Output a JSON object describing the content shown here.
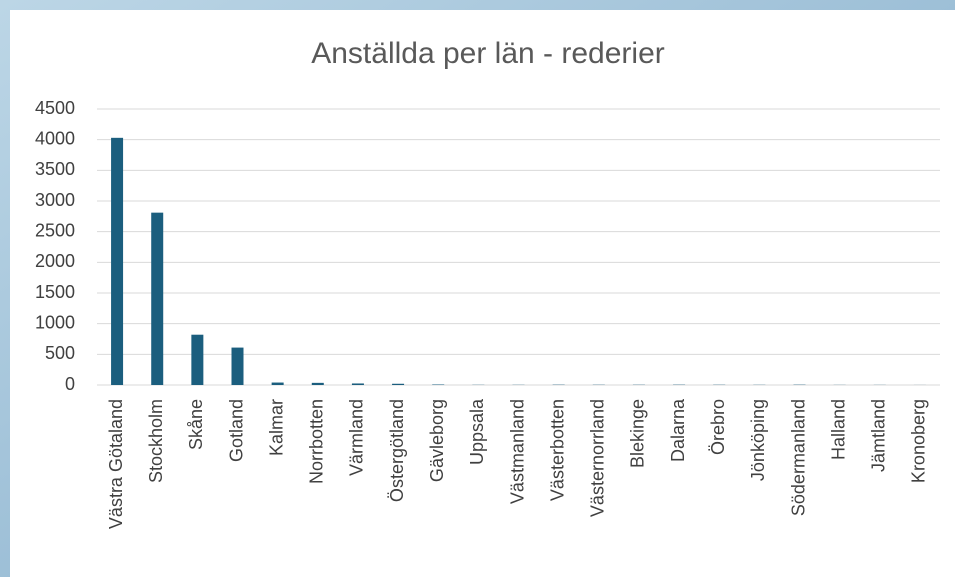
{
  "chart_data": {
    "type": "bar",
    "title": "Anställda per län - rederier",
    "categories": [
      "Västra Götaland",
      "Stockholm",
      "Skåne",
      "Gotland",
      "Kalmar",
      "Norrbotten",
      "Värmland",
      "Östergötland",
      "Gävleborg",
      "Uppsala",
      "Västmanland",
      "Västerbotten",
      "Västernorrland",
      "Blekinge",
      "Dalarna",
      "Örebro",
      "Jönköping",
      "Södermanland",
      "Halland",
      "Jämtland",
      "Kronoberg"
    ],
    "values": [
      4030,
      2810,
      820,
      610,
      40,
      35,
      25,
      20,
      8,
      3,
      3,
      5,
      4,
      4,
      5,
      4,
      3,
      5,
      2,
      2,
      1
    ],
    "color": "#1b5e7e",
    "ylim": [
      0,
      4500
    ],
    "yticks": [
      0,
      500,
      1000,
      1500,
      2000,
      2500,
      3000,
      3500,
      4000,
      4500
    ],
    "grid": true
  }
}
